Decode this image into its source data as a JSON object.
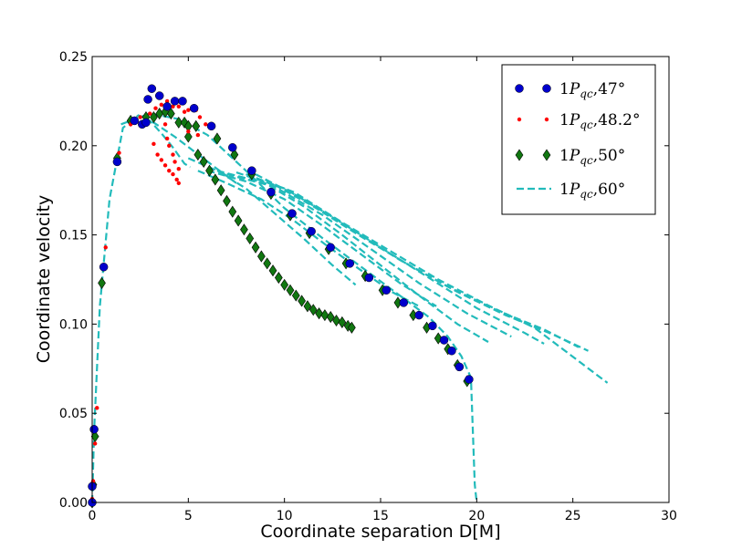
{
  "chart_data": {
    "type": "scatter",
    "title": "",
    "xlabel": "Coordinate separation D[M]",
    "ylabel": "Coordinate velocity",
    "xlim": [
      0,
      30
    ],
    "ylim": [
      0,
      0.25
    ],
    "xticks": [
      0,
      5,
      10,
      15,
      20,
      25,
      30
    ],
    "xtick_labels": [
      "0",
      "5",
      "10",
      "15",
      "20",
      "25",
      "30"
    ],
    "yticks": [
      0,
      0.05,
      0.1,
      0.15,
      0.2,
      0.25
    ],
    "ytick_labels": [
      "0.00",
      "0.05",
      "0.10",
      "0.15",
      "0.20",
      "0.25"
    ],
    "grid": false,
    "legend": "top-right",
    "series": [
      {
        "name": "1P_qc,47°",
        "label_main": "1P",
        "label_sub": "qc",
        "label_rest": ",47°",
        "marker": "large-circle",
        "color": "#0000cc",
        "points": [
          [
            0.0,
            0.0
          ],
          [
            0.0,
            0.009
          ],
          [
            0.1,
            0.041
          ],
          [
            0.6,
            0.132
          ],
          [
            1.3,
            0.191
          ],
          [
            2.2,
            0.214
          ],
          [
            2.6,
            0.212
          ],
          [
            2.8,
            0.213
          ],
          [
            2.9,
            0.226
          ],
          [
            3.1,
            0.232
          ],
          [
            3.5,
            0.228
          ],
          [
            3.9,
            0.222
          ],
          [
            4.3,
            0.225
          ],
          [
            4.7,
            0.225
          ],
          [
            5.3,
            0.221
          ],
          [
            6.2,
            0.211
          ],
          [
            7.3,
            0.199
          ],
          [
            8.3,
            0.186
          ],
          [
            9.3,
            0.174
          ],
          [
            10.4,
            0.162
          ],
          [
            11.4,
            0.152
          ],
          [
            12.4,
            0.143
          ],
          [
            13.4,
            0.134
          ],
          [
            14.4,
            0.126
          ],
          [
            15.3,
            0.119
          ],
          [
            16.2,
            0.112
          ],
          [
            17.0,
            0.105
          ],
          [
            17.7,
            0.099
          ],
          [
            18.3,
            0.091
          ],
          [
            18.7,
            0.085
          ],
          [
            19.1,
            0.076
          ],
          [
            19.6,
            0.069
          ]
        ]
      },
      {
        "name": "1P_qc,48.2°",
        "label_main": "1P",
        "label_sub": "qc",
        "label_rest": ",48.2°",
        "marker": "small-dot",
        "color": "#ff0000",
        "points": [
          [
            0.0,
            0.002
          ],
          [
            0.05,
            0.012
          ],
          [
            0.15,
            0.033
          ],
          [
            0.25,
            0.053
          ],
          [
            0.7,
            0.143
          ],
          [
            1.4,
            0.196
          ],
          [
            2.0,
            0.212
          ],
          [
            2.5,
            0.216
          ],
          [
            3.0,
            0.218
          ],
          [
            3.3,
            0.221
          ],
          [
            3.6,
            0.223
          ],
          [
            3.9,
            0.225
          ],
          [
            4.2,
            0.222
          ],
          [
            4.5,
            0.222
          ],
          [
            4.8,
            0.219
          ],
          [
            5.0,
            0.22
          ],
          [
            5.2,
            0.221
          ],
          [
            5.4,
            0.22
          ],
          [
            5.6,
            0.216
          ],
          [
            5.9,
            0.212
          ],
          [
            6.2,
            0.21
          ],
          [
            3.2,
            0.201
          ],
          [
            3.4,
            0.195
          ],
          [
            3.6,
            0.192
          ],
          [
            3.8,
            0.189
          ],
          [
            4.0,
            0.186
          ],
          [
            4.2,
            0.184
          ],
          [
            4.4,
            0.181
          ],
          [
            4.5,
            0.179
          ],
          [
            3.8,
            0.212
          ],
          [
            3.9,
            0.204
          ],
          [
            4.0,
            0.2
          ],
          [
            4.2,
            0.195
          ],
          [
            4.3,
            0.191
          ],
          [
            4.5,
            0.187
          ],
          [
            5.0,
            0.208
          ],
          [
            5.5,
            0.206
          ]
        ]
      },
      {
        "name": "1P_qc,50°",
        "label_main": "1P",
        "label_sub": "qc",
        "label_rest": ",50°",
        "marker": "diamond",
        "color": "#117711",
        "points": [
          [
            0.0,
            0.0
          ],
          [
            0.05,
            0.01
          ],
          [
            0.15,
            0.037
          ],
          [
            0.5,
            0.123
          ],
          [
            1.3,
            0.193
          ],
          [
            2.0,
            0.214
          ],
          [
            2.8,
            0.216
          ],
          [
            3.2,
            0.216
          ],
          [
            3.5,
            0.218
          ],
          [
            3.8,
            0.219
          ],
          [
            4.1,
            0.218
          ],
          [
            4.5,
            0.213
          ],
          [
            4.8,
            0.213
          ],
          [
            5.0,
            0.211
          ],
          [
            5.4,
            0.211
          ],
          [
            5.0,
            0.205
          ],
          [
            5.5,
            0.195
          ],
          [
            5.8,
            0.191
          ],
          [
            6.1,
            0.186
          ],
          [
            6.4,
            0.181
          ],
          [
            6.7,
            0.175
          ],
          [
            7.0,
            0.169
          ],
          [
            7.3,
            0.163
          ],
          [
            7.6,
            0.158
          ],
          [
            7.9,
            0.153
          ],
          [
            8.2,
            0.148
          ],
          [
            8.5,
            0.143
          ],
          [
            8.8,
            0.138
          ],
          [
            9.1,
            0.134
          ],
          [
            9.4,
            0.13
          ],
          [
            9.7,
            0.126
          ],
          [
            10.0,
            0.122
          ],
          [
            10.3,
            0.119
          ],
          [
            10.6,
            0.116
          ],
          [
            10.9,
            0.113
          ],
          [
            11.2,
            0.11
          ],
          [
            11.5,
            0.108
          ],
          [
            11.8,
            0.106
          ],
          [
            12.1,
            0.105
          ],
          [
            12.4,
            0.104
          ],
          [
            12.7,
            0.102
          ],
          [
            13.0,
            0.101
          ],
          [
            13.3,
            0.099
          ],
          [
            13.5,
            0.098
          ],
          [
            6.5,
            0.204
          ],
          [
            7.4,
            0.195
          ],
          [
            8.3,
            0.184
          ],
          [
            9.3,
            0.173
          ],
          [
            10.3,
            0.161
          ],
          [
            11.3,
            0.151
          ],
          [
            12.3,
            0.142
          ],
          [
            13.2,
            0.134
          ],
          [
            14.2,
            0.127
          ],
          [
            15.1,
            0.119
          ],
          [
            15.9,
            0.112
          ],
          [
            16.7,
            0.105
          ],
          [
            17.4,
            0.098
          ],
          [
            18.0,
            0.092
          ],
          [
            18.5,
            0.086
          ],
          [
            19.0,
            0.077
          ],
          [
            19.5,
            0.068
          ]
        ]
      },
      {
        "name": "1P_qc,60°",
        "label_main": "1P",
        "label_sub": "qc",
        "label_rest": ",60°",
        "marker": "dashed-line",
        "color": "#22bbbb",
        "lines": [
          [
            [
              0.0,
              0.0
            ],
            [
              0.1,
              0.04
            ],
            [
              0.4,
              0.11
            ],
            [
              0.9,
              0.17
            ],
            [
              1.6,
              0.21
            ],
            [
              2.4,
              0.217
            ],
            [
              3.0,
              0.214
            ],
            [
              3.6,
              0.207
            ],
            [
              4.2,
              0.199
            ],
            [
              4.8,
              0.19
            ],
            [
              5.1,
              0.188
            ]
          ],
          [
            [
              2.0,
              0.215
            ],
            [
              3.2,
              0.213
            ],
            [
              4.3,
              0.205
            ],
            [
              5.4,
              0.196
            ],
            [
              6.5,
              0.187
            ],
            [
              7.5,
              0.179
            ]
          ],
          [
            [
              5.0,
              0.193
            ],
            [
              6.5,
              0.186
            ],
            [
              8.0,
              0.176
            ],
            [
              9.5,
              0.162
            ],
            [
              11.0,
              0.148
            ],
            [
              12.5,
              0.133
            ],
            [
              13.7,
              0.122
            ]
          ],
          [
            [
              5.5,
              0.186
            ],
            [
              7.0,
              0.179
            ],
            [
              8.8,
              0.17
            ],
            [
              10.5,
              0.158
            ],
            [
              12.2,
              0.144
            ],
            [
              14.0,
              0.13
            ],
            [
              15.6,
              0.118
            ],
            [
              17.0,
              0.11
            ]
          ],
          [
            [
              6.0,
              0.186
            ],
            [
              8.0,
              0.18
            ],
            [
              10.0,
              0.17
            ],
            [
              12.0,
              0.155
            ],
            [
              14.0,
              0.139
            ],
            [
              16.0,
              0.123
            ],
            [
              17.9,
              0.11
            ]
          ],
          [
            [
              6.5,
              0.186
            ],
            [
              9.0,
              0.179
            ],
            [
              11.0,
              0.166
            ],
            [
              13.0,
              0.15
            ],
            [
              15.0,
              0.133
            ],
            [
              17.0,
              0.116
            ],
            [
              19.0,
              0.1
            ],
            [
              20.6,
              0.09
            ]
          ],
          [
            [
              7.0,
              0.184
            ],
            [
              9.5,
              0.177
            ],
            [
              12.0,
              0.161
            ],
            [
              14.5,
              0.142
            ],
            [
              17.0,
              0.123
            ],
            [
              19.5,
              0.106
            ],
            [
              21.8,
              0.093
            ]
          ],
          [
            [
              7.5,
              0.185
            ],
            [
              10.0,
              0.176
            ],
            [
              12.5,
              0.16
            ],
            [
              15.0,
              0.143
            ],
            [
              17.5,
              0.126
            ],
            [
              20.0,
              0.109
            ],
            [
              22.5,
              0.095
            ],
            [
              23.5,
              0.089
            ]
          ],
          [
            [
              8.0,
              0.184
            ],
            [
              10.5,
              0.174
            ],
            [
              13.0,
              0.157
            ],
            [
              15.5,
              0.141
            ],
            [
              18.0,
              0.125
            ],
            [
              20.5,
              0.111
            ],
            [
              23.0,
              0.098
            ],
            [
              26.8,
              0.067
            ]
          ],
          [
            [
              8.5,
              0.184
            ],
            [
              11.0,
              0.17
            ],
            [
              13.5,
              0.153
            ],
            [
              16.0,
              0.136
            ],
            [
              18.5,
              0.121
            ],
            [
              21.0,
              0.108
            ],
            [
              23.5,
              0.097
            ],
            [
              25.3,
              0.087
            ]
          ],
          [
            [
              9.0,
              0.181
            ],
            [
              11.5,
              0.166
            ],
            [
              14.0,
              0.149
            ],
            [
              16.5,
              0.133
            ],
            [
              19.0,
              0.118
            ],
            [
              21.5,
              0.105
            ],
            [
              24.0,
              0.094
            ],
            [
              25.8,
              0.085
            ]
          ],
          [
            [
              1.5,
              0.212
            ],
            [
              3.0,
              0.218
            ],
            [
              4.5,
              0.215
            ],
            [
              6.0,
              0.206
            ],
            [
              8.0,
              0.186
            ],
            [
              10.0,
              0.165
            ],
            [
              12.0,
              0.148
            ],
            [
              14.0,
              0.132
            ],
            [
              16.0,
              0.116
            ],
            [
              17.5,
              0.104
            ],
            [
              18.5,
              0.093
            ],
            [
              19.2,
              0.082
            ],
            [
              19.7,
              0.07
            ],
            [
              19.8,
              0.04
            ],
            [
              19.9,
              0.01
            ],
            [
              20.0,
              0.0
            ]
          ]
        ]
      }
    ]
  }
}
